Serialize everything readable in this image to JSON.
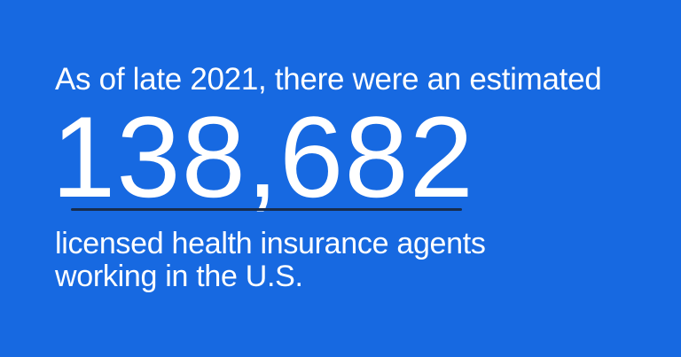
{
  "intro": "As of late 2021, there were an estimated",
  "figure": "138,682",
  "description_line1": "licensed health insurance agents",
  "description_line2": "working in the U.S.",
  "colors": {
    "background": "#1769e1",
    "text": "#ffffff",
    "underline": "#172c4d"
  }
}
